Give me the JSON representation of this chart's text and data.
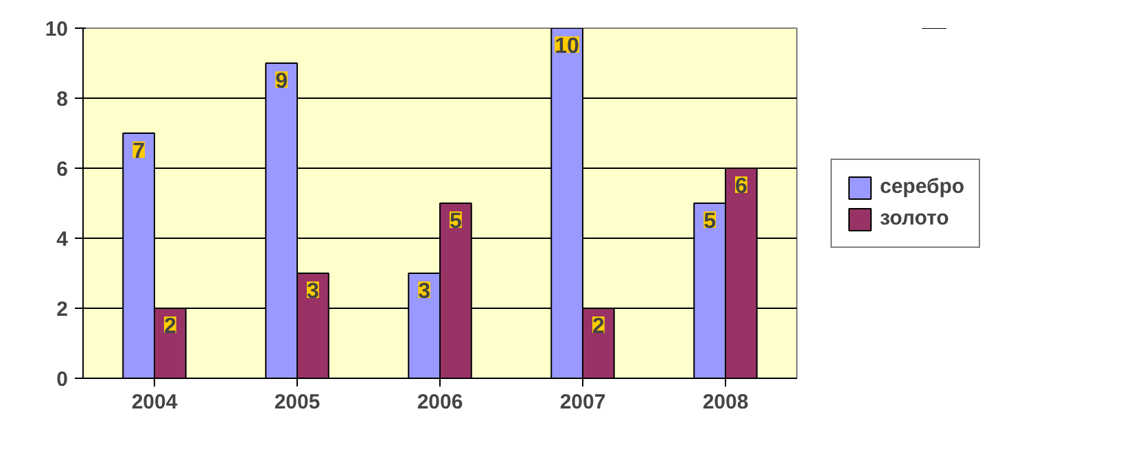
{
  "chart_data": {
    "type": "bar",
    "categories": [
      "2004",
      "2005",
      "2006",
      "2007",
      "2008"
    ],
    "series": [
      {
        "name": "серебро",
        "color": "#9999ff",
        "values": [
          7,
          9,
          3,
          10,
          5
        ]
      },
      {
        "name": "золото",
        "color": "#993366",
        "values": [
          2,
          3,
          5,
          2,
          6
        ]
      }
    ],
    "ylim": [
      0,
      10
    ],
    "yticks": [
      0,
      2,
      4,
      6,
      8,
      10
    ],
    "grid": "y",
    "legend": "right",
    "data_labels": true
  }
}
